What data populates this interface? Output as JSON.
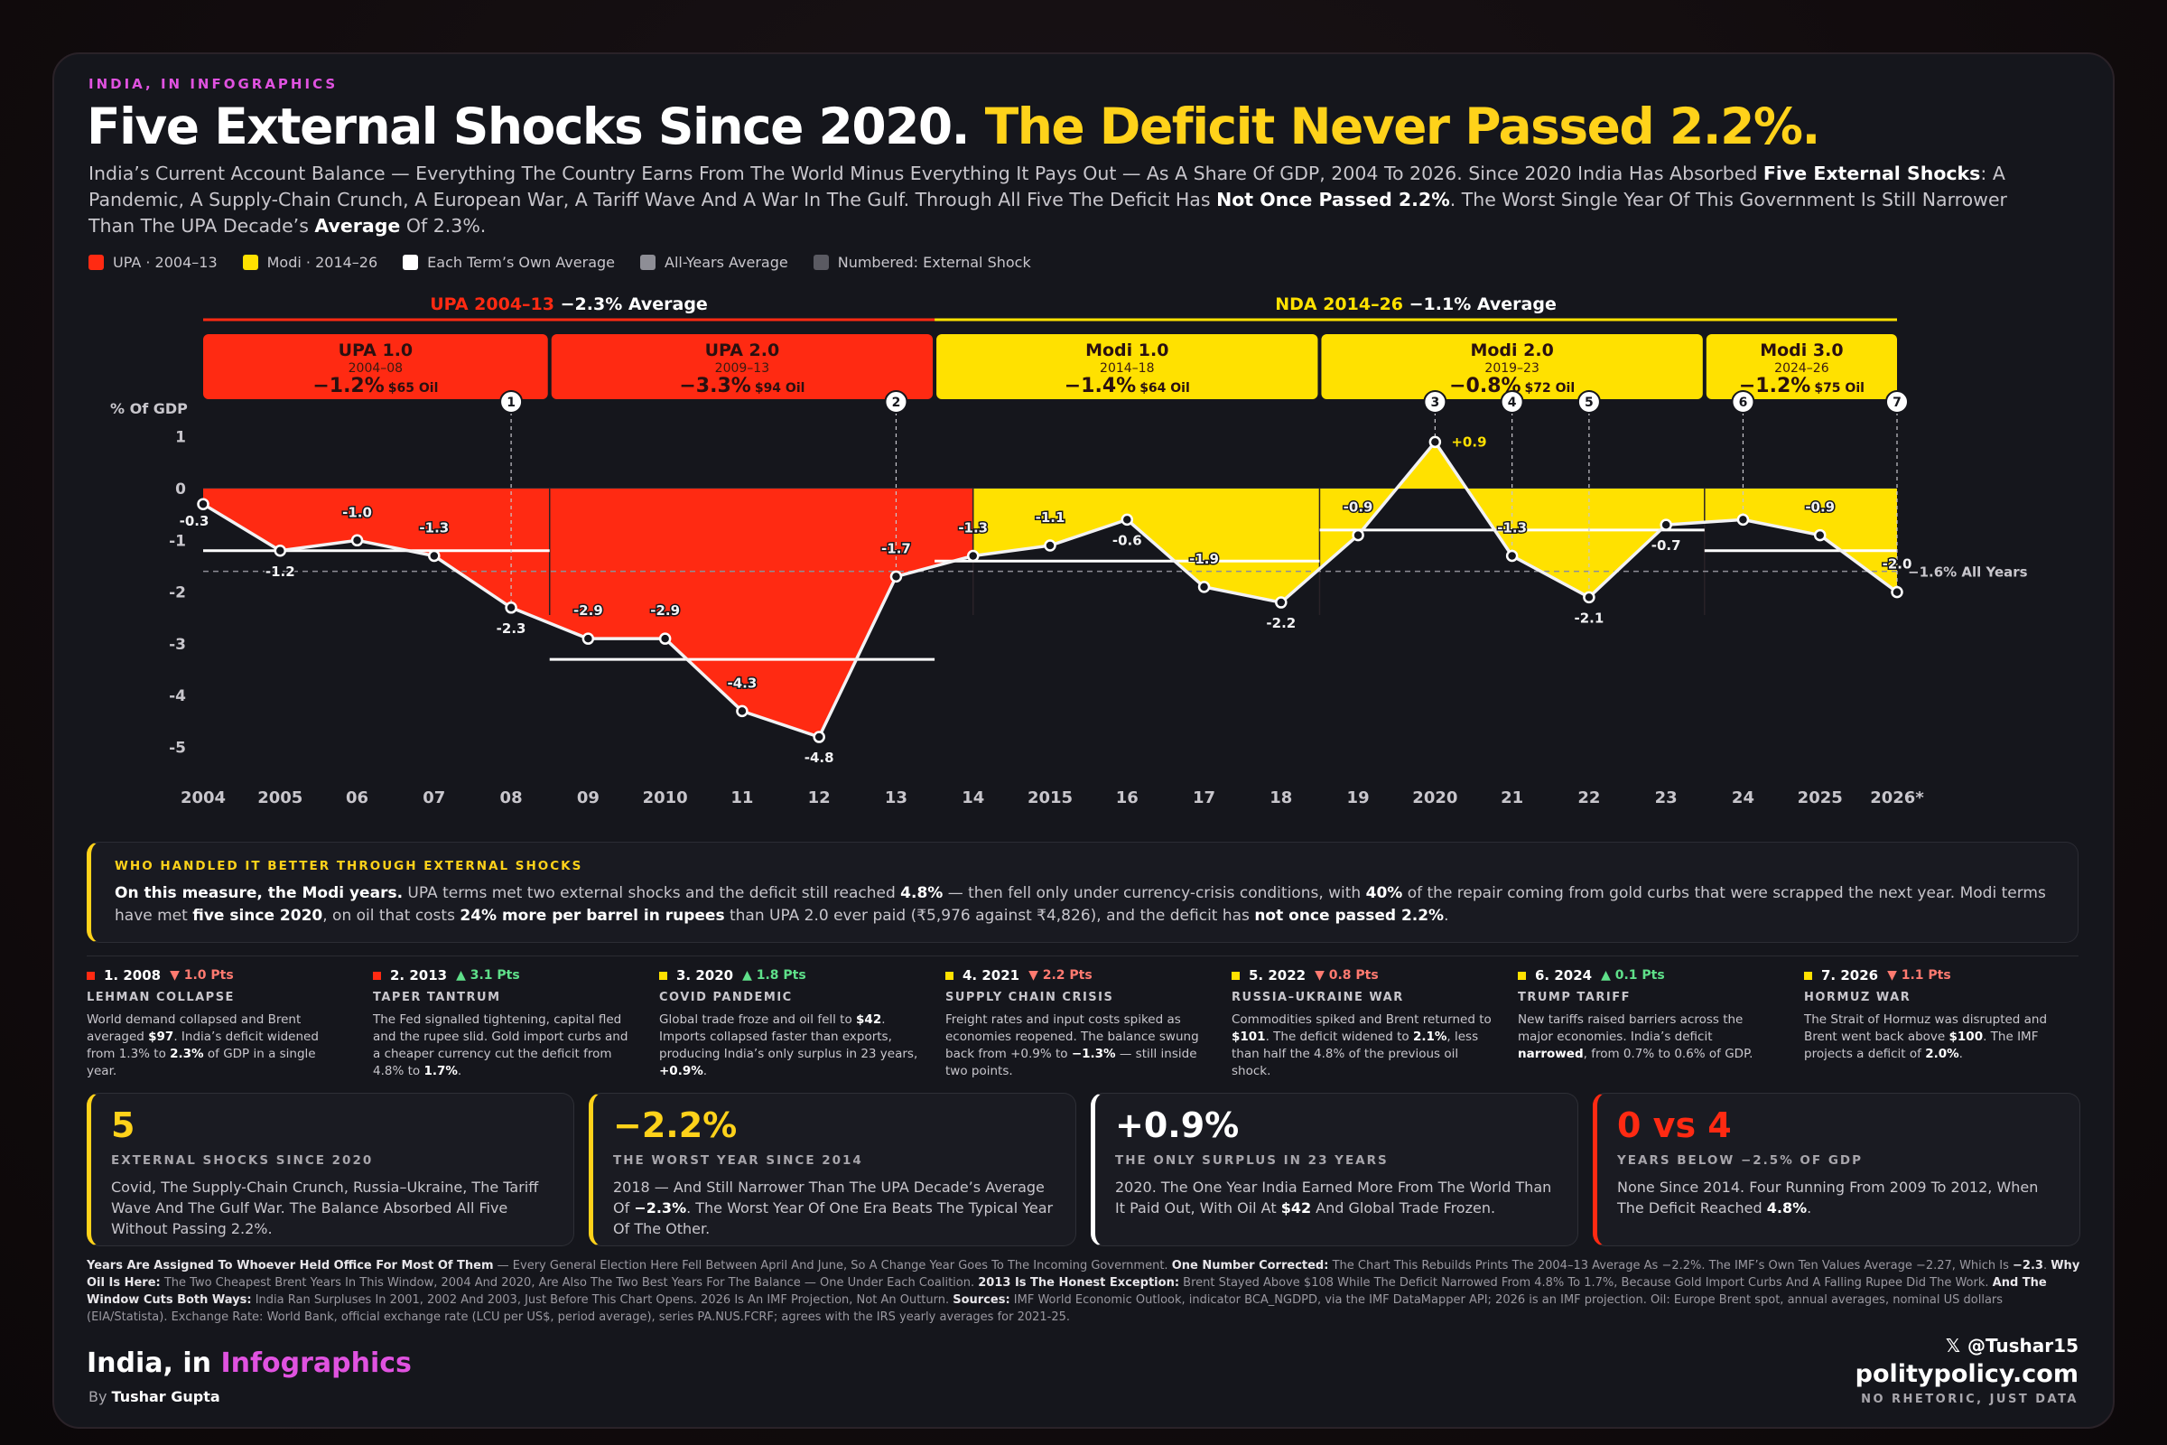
{
  "header": {
    "kicker": "INDIA, IN INFOGRAPHICS",
    "title_main": "Five External Shocks Since 2020.",
    "title_highlight": "The Deficit Never Passed 2.2%.",
    "subtitle_parts": [
      "India’s Current Account Balance — Everything The Country Earns From The World Minus Everything It Pays Out — As A Share Of GDP, 2004 To 2026. Since 2020 India Has Absorbed ",
      "Five External Shocks",
      ": A Pandemic, A Supply-Chain Crunch, A European War, A Tariff Wave And A War In The Gulf. Through All Five The Deficit Has ",
      "Not Once Passed 2.2%",
      ". The Worst Single Year Of This Government Is Still Narrower Than The UPA Decade’s ",
      "Average",
      " Of 2.3%."
    ]
  },
  "legend": [
    {
      "label": "UPA · 2004–13",
      "color": "#ff2a12"
    },
    {
      "label": "Modi · 2014–26",
      "color": "#ffe100"
    },
    {
      "label": "Each Term’s Own Average",
      "color": "#ffffff"
    },
    {
      "label": "All-Years Average",
      "color": "#8e8e96"
    },
    {
      "label": "Numbered: External Shock",
      "color": "#5a5a62"
    }
  ],
  "chart_data": {
    "type": "area",
    "ylabel": "% Of GDP",
    "ylim": [
      -5.3,
      1.2
    ],
    "yticks": [
      1,
      0,
      -1,
      -2,
      -3,
      -4,
      -5
    ],
    "x": [
      2004,
      2005,
      2006,
      2007,
      2008,
      2009,
      2010,
      2011,
      2012,
      2013,
      2014,
      2015,
      2016,
      2017,
      2018,
      2019,
      2020,
      2021,
      2022,
      2023,
      2024,
      2025,
      2026
    ],
    "xtick_labels": [
      "2004",
      "2005",
      "06",
      "07",
      "08",
      "09",
      "2010",
      "11",
      "12",
      "13",
      "14",
      "2015",
      "16",
      "17",
      "18",
      "19",
      "2020",
      "21",
      "22",
      "23",
      "24",
      "2025",
      "2026*"
    ],
    "values": [
      -0.3,
      -1.2,
      -1.0,
      -1.3,
      -2.3,
      -2.9,
      -2.9,
      -4.3,
      -4.8,
      -1.7,
      -1.3,
      -1.1,
      -0.6,
      -1.9,
      -2.2,
      -0.9,
      0.9,
      -1.3,
      -2.1,
      -0.7,
      -0.6,
      -0.9,
      -2.0
    ],
    "value_labels": [
      "-0.3",
      "-1.2",
      "-1.0",
      "-1.3",
      "-2.3",
      "-2.9",
      "-2.9",
      "-4.3",
      "-4.8",
      "-1.7",
      "-1.3",
      "-1.1",
      "-0.6",
      "-1.9",
      "-2.2",
      "-0.9",
      "+0.9",
      "-1.3",
      "-2.1",
      "-0.7",
      "",
      "-0.9",
      "-2.0"
    ],
    "label_pos": [
      "below",
      "below",
      "above",
      "above",
      "below",
      "above",
      "above",
      "above",
      "below",
      "above",
      "above",
      "above",
      "below",
      "above",
      "below",
      "above",
      "right",
      "above",
      "below",
      "below",
      "",
      "above",
      "above"
    ],
    "all_years_average": -1.6,
    "all_years_label": "−1.6% All Years",
    "upa_color": "#ff2a12",
    "modi_color": "#ffe100",
    "eras": [
      {
        "name": "UPA 2004–13",
        "avg_text": "−2.3% Average",
        "from": 2004,
        "to": 2013,
        "color": "#ff2a12"
      },
      {
        "name": "NDA 2014–26",
        "avg_text": "−1.1% Average",
        "from": 2014,
        "to": 2026,
        "color": "#ffe100"
      }
    ],
    "terms": [
      {
        "name": "UPA 1.0",
        "years": "2004–08",
        "avg": "−1.2%",
        "oil": "$65 Oil",
        "from": 2004,
        "to": 2008,
        "average": -1.2,
        "color": "#ff2a12"
      },
      {
        "name": "UPA 2.0",
        "years": "2009–13",
        "avg": "−3.3%",
        "oil": "$94 Oil",
        "from": 2009,
        "to": 2013,
        "average": -3.3,
        "color": "#ff2a12"
      },
      {
        "name": "Modi 1.0",
        "years": "2014–18",
        "avg": "−1.4%",
        "oil": "$64 Oil",
        "from": 2014,
        "to": 2018,
        "average": -1.4,
        "color": "#ffe100"
      },
      {
        "name": "Modi 2.0",
        "years": "2019–23",
        "avg": "−0.8%",
        "oil": "$72 Oil",
        "from": 2019,
        "to": 2023,
        "average": -0.8,
        "color": "#ffe100"
      },
      {
        "name": "Modi 3.0",
        "years": "2024–26",
        "avg": "−1.2%",
        "oil": "$75 Oil",
        "from": 2024,
        "to": 2026,
        "average": -1.2,
        "color": "#ffe100"
      }
    ],
    "shock_markers": [
      {
        "n": "1",
        "year": 2008
      },
      {
        "n": "2",
        "year": 2013
      },
      {
        "n": "3",
        "year": 2020
      },
      {
        "n": "4",
        "year": 2021
      },
      {
        "n": "5",
        "year": 2022
      },
      {
        "n": "6",
        "year": 2024
      },
      {
        "n": "7",
        "year": 2026
      }
    ]
  },
  "insight": {
    "heading": "WHO HANDLED IT BETTER THROUGH EXTERNAL SHOCKS",
    "parts": [
      {
        "t": "On this measure, the Modi years.",
        "b": true
      },
      {
        "t": " UPA terms met two external shocks and the deficit still reached ",
        "b": false
      },
      {
        "t": "4.8%",
        "b": true
      },
      {
        "t": " — then fell only under currency-crisis conditions, with ",
        "b": false
      },
      {
        "t": "40%",
        "b": true
      },
      {
        "t": " of the repair coming from gold curbs that were scrapped the next year. Modi terms have met ",
        "b": false
      },
      {
        "t": "five since 2020",
        "b": true
      },
      {
        "t": ", on oil that costs ",
        "b": false
      },
      {
        "t": "24% more per barrel in rupees",
        "b": true
      },
      {
        "t": " than UPA 2.0 ever paid (₹5,976 against ₹4,826), and the deficit has ",
        "b": false
      },
      {
        "t": "not once passed 2.2%",
        "b": true
      },
      {
        "t": ".",
        "b": false
      }
    ]
  },
  "shocks": [
    {
      "head": "1. 2008",
      "delta": "▼ 1.0 Pts",
      "up": false,
      "name": "LEHMAN COLLAPSE",
      "color": "#ff2a12",
      "desc": [
        {
          "t": "World demand collapsed and Brent averaged ",
          "b": false
        },
        {
          "t": "$97",
          "b": true
        },
        {
          "t": ". India’s deficit widened from 1.3% to ",
          "b": false
        },
        {
          "t": "2.3%",
          "b": true
        },
        {
          "t": " of GDP in a single year.",
          "b": false
        }
      ]
    },
    {
      "head": "2. 2013",
      "delta": "▲ 3.1 Pts",
      "up": true,
      "name": "TAPER TANTRUM",
      "color": "#ff2a12",
      "desc": [
        {
          "t": "The Fed signalled tightening, capital fled and the rupee slid. Gold import curbs and a cheaper currency cut the deficit from 4.8% to ",
          "b": false
        },
        {
          "t": "1.7%",
          "b": true
        },
        {
          "t": ".",
          "b": false
        }
      ]
    },
    {
      "head": "3. 2020",
      "delta": "▲ 1.8 Pts",
      "up": true,
      "name": "COVID PANDEMIC",
      "color": "#ffe100",
      "desc": [
        {
          "t": "Global trade froze and oil fell to ",
          "b": false
        },
        {
          "t": "$42",
          "b": true
        },
        {
          "t": ". Imports collapsed faster than exports, producing India’s only surplus in 23 years, ",
          "b": false
        },
        {
          "t": "+0.9%",
          "b": true
        },
        {
          "t": ".",
          "b": false
        }
      ]
    },
    {
      "head": "4. 2021",
      "delta": "▼ 2.2 Pts",
      "up": false,
      "name": "SUPPLY CHAIN CRISIS",
      "color": "#ffe100",
      "desc": [
        {
          "t": "Freight rates and input costs spiked as economies reopened. The balance swung back from +0.9% to ",
          "b": false
        },
        {
          "t": "−1.3%",
          "b": true
        },
        {
          "t": " — still inside two points.",
          "b": false
        }
      ]
    },
    {
      "head": "5. 2022",
      "delta": "▼ 0.8 Pts",
      "up": false,
      "name": "RUSSIA–UKRAINE WAR",
      "color": "#ffe100",
      "desc": [
        {
          "t": "Commodities spiked and Brent returned to ",
          "b": false
        },
        {
          "t": "$101",
          "b": true
        },
        {
          "t": ". The deficit widened to ",
          "b": false
        },
        {
          "t": "2.1%",
          "b": true
        },
        {
          "t": ", less than half the 4.8% of the previous oil shock.",
          "b": false
        }
      ]
    },
    {
      "head": "6. 2024",
      "delta": "▲ 0.1 Pts",
      "up": true,
      "name": "TRUMP TARIFF",
      "color": "#ffe100",
      "desc": [
        {
          "t": "New tariffs raised barriers across the major economies. India’s deficit ",
          "b": false
        },
        {
          "t": "narrowed",
          "b": true
        },
        {
          "t": ", from 0.7% to 0.6% of GDP.",
          "b": false
        }
      ]
    },
    {
      "head": "7. 2026",
      "delta": "▼ 1.1 Pts",
      "up": false,
      "name": "HORMUZ WAR",
      "color": "#ffe100",
      "desc": [
        {
          "t": "The Strait of Hormuz was disrupted and Brent went back above ",
          "b": false
        },
        {
          "t": "$100",
          "b": true
        },
        {
          "t": ". The IMF projects a deficit of ",
          "b": false
        },
        {
          "t": "2.0%",
          "b": true
        },
        {
          "t": ".",
          "b": false
        }
      ]
    }
  ],
  "stats": [
    {
      "big": "5",
      "color": "#ffd21a",
      "label": "EXTERNAL SHOCKS SINCE 2020",
      "text": [
        {
          "t": "Covid, The Supply-Chain Crunch, Russia–Ukraine, The Tariff Wave And The Gulf War. The Balance Absorbed All Five Without Passing 2.2%.",
          "b": false
        }
      ]
    },
    {
      "big": "−2.2%",
      "color": "#ffd21a",
      "label": "THE WORST YEAR SINCE 2014",
      "text": [
        {
          "t": "2018 — And Still Narrower Than The UPA Decade’s Average Of ",
          "b": false
        },
        {
          "t": "−2.3%",
          "b": true
        },
        {
          "t": ". The Worst Year Of One Era Beats The Typical Year Of The Other.",
          "b": false
        }
      ]
    },
    {
      "big": "+0.9%",
      "color": "#ffffff",
      "label": "THE ONLY SURPLUS IN 23 YEARS",
      "text": [
        {
          "t": "2020. The One Year India Earned More From The World Than It Paid Out, With Oil At ",
          "b": false
        },
        {
          "t": "$42",
          "b": true
        },
        {
          "t": " And Global Trade Frozen.",
          "b": false
        }
      ]
    },
    {
      "big": "0 vs 4",
      "color": "#ff2a12",
      "label": "YEARS BELOW −2.5% OF GDP",
      "text": [
        {
          "t": "None Since 2014. Four Running From 2009 To 2012, When The Deficit Reached ",
          "b": false
        },
        {
          "t": "4.8%",
          "b": true
        },
        {
          "t": ".",
          "b": false
        }
      ]
    }
  ],
  "notes": [
    {
      "t": "Years Are Assigned To Whoever Held Office For Most Of Them",
      "b": true
    },
    {
      "t": " — Every General Election Here Fell Between April And June, So A Change Year Goes To The Incoming Government. ",
      "b": false
    },
    {
      "t": "One Number Corrected:",
      "b": true
    },
    {
      "t": " The Chart This Rebuilds Prints The 2004–13 Average As −2.2%. The IMF’s Own Ten Values Average −2.27, Which Is ",
      "b": false
    },
    {
      "t": "−2.3",
      "b": true
    },
    {
      "t": ". ",
      "b": false
    },
    {
      "t": "Why Oil Is Here:",
      "b": true
    },
    {
      "t": " The Two Cheapest Brent Years In This Window, 2004 And 2020, Are Also The Two Best Years For The Balance — One Under Each Coalition. ",
      "b": false
    },
    {
      "t": "2013 Is The Honest Exception:",
      "b": true
    },
    {
      "t": " Brent Stayed Above $108 While The Deficit Narrowed From 4.8% To 1.7%, Because Gold Import Curbs And A Falling Rupee Did The Work. ",
      "b": false
    },
    {
      "t": "And The Window Cuts Both Ways:",
      "b": true
    },
    {
      "t": " India Ran Surpluses In 2001, 2002 And 2003, Just Before This Chart Opens. 2026 Is An IMF Projection, Not An Outturn. ",
      "b": false
    },
    {
      "t": "Sources:",
      "b": true
    },
    {
      "t": " IMF World Economic Outlook, indicator BCA_NGDPD, via the IMF DataMapper API; 2026 is an IMF projection. Oil: Europe Brent spot, annual averages, nominal US dollars (EIA/Statista). Exchange Rate: World Bank, official exchange rate (LCU per US$, period average), series PA.NUS.FCRF; agrees with the IRS yearly averages for 2021-25.",
      "b": false
    }
  ],
  "footer": {
    "brand_a": "India, in ",
    "brand_b": "Infographics",
    "by": "By ",
    "author": "Tushar Gupta",
    "handle": "@Tushar15",
    "x_icon": "x-logo-icon",
    "site": "politypolicy.com",
    "tagline": "NO RHETORIC, JUST DATA"
  }
}
